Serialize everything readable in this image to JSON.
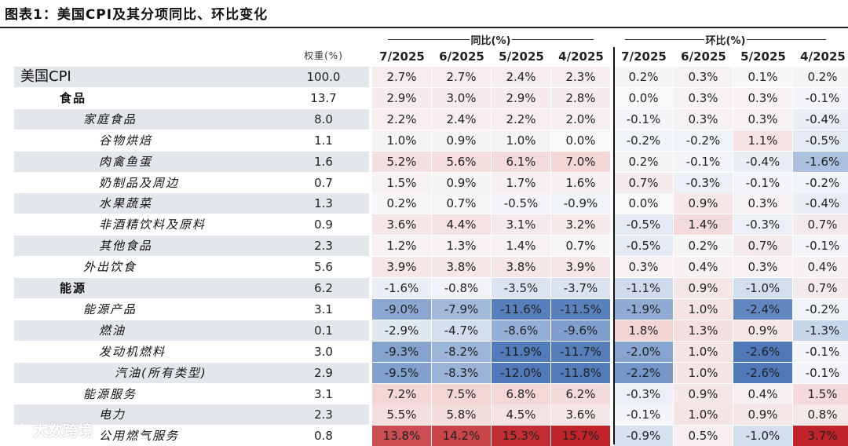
{
  "title": "图表1：美国CPI及其分项同比、环比变化",
  "groups": {
    "yoy": "同比(%)",
    "mom": "环比(%)"
  },
  "weight_header": "权重(%)",
  "months": [
    "7/2025",
    "6/2025",
    "5/2025",
    "4/2025"
  ],
  "watermark": "大数跨境",
  "colors": {
    "red_dark": "#c0242a",
    "red_mid": "#e06c6c",
    "red_light": "#f3d3d3",
    "neutral": "#f7f8fa",
    "blue_light": "#c8d6ea",
    "blue_mid": "#7a9acb",
    "blue_dark": "#4f79b9",
    "row_shade": "#e3e6eb"
  },
  "rows": [
    {
      "label": "美国CPI",
      "weight": "100.0",
      "level": 0,
      "yoy": [
        "2.7%",
        "2.7%",
        "2.4%",
        "2.3%"
      ],
      "mom": [
        "0.2%",
        "0.3%",
        "0.1%",
        "0.2%"
      ]
    },
    {
      "label": "食品",
      "weight": "13.7",
      "level": 1,
      "yoy": [
        "2.9%",
        "3.0%",
        "2.9%",
        "2.8%"
      ],
      "mom": [
        "0.0%",
        "0.3%",
        "0.3%",
        "-0.1%"
      ]
    },
    {
      "label": "家庭食品",
      "weight": "8.0",
      "level": 2,
      "yoy": [
        "2.2%",
        "2.4%",
        "2.2%",
        "2.0%"
      ],
      "mom": [
        "-0.1%",
        "0.3%",
        "0.3%",
        "-0.4%"
      ]
    },
    {
      "label": "谷物烘焙",
      "weight": "1.1",
      "level": 3,
      "yoy": [
        "1.0%",
        "0.9%",
        "1.0%",
        "0.0%"
      ],
      "mom": [
        "-0.2%",
        "-0.2%",
        "1.1%",
        "-0.5%"
      ]
    },
    {
      "label": "肉禽鱼蛋",
      "weight": "1.6",
      "level": 3,
      "yoy": [
        "5.2%",
        "5.6%",
        "6.1%",
        "7.0%"
      ],
      "mom": [
        "0.2%",
        "-0.1%",
        "-0.4%",
        "-1.6%"
      ]
    },
    {
      "label": "奶制品及周边",
      "weight": "0.7",
      "level": 3,
      "yoy": [
        "1.5%",
        "0.9%",
        "1.7%",
        "1.6%"
      ],
      "mom": [
        "0.7%",
        "-0.3%",
        "-0.1%",
        "-0.2%"
      ]
    },
    {
      "label": "水果蔬菜",
      "weight": "1.3",
      "level": 3,
      "yoy": [
        "0.2%",
        "0.7%",
        "-0.5%",
        "-0.9%"
      ],
      "mom": [
        "0.0%",
        "0.9%",
        "0.3%",
        "-0.4%"
      ]
    },
    {
      "label": "非酒精饮料及原料",
      "weight": "0.9",
      "level": 3,
      "yoy": [
        "3.6%",
        "4.4%",
        "3.1%",
        "3.2%"
      ],
      "mom": [
        "-0.5%",
        "1.4%",
        "-0.3%",
        "0.7%"
      ]
    },
    {
      "label": "其他食品",
      "weight": "2.3",
      "level": 3,
      "yoy": [
        "1.2%",
        "1.3%",
        "1.4%",
        "0.7%"
      ],
      "mom": [
        "-0.5%",
        "0.2%",
        "0.7%",
        "-0.1%"
      ]
    },
    {
      "label": "外出饮食",
      "weight": "5.6",
      "level": 2,
      "yoy": [
        "3.9%",
        "3.8%",
        "3.8%",
        "3.9%"
      ],
      "mom": [
        "0.3%",
        "0.4%",
        "0.3%",
        "0.4%"
      ]
    },
    {
      "label": "能源",
      "weight": "6.2",
      "level": 1,
      "yoy": [
        "-1.6%",
        "-0.8%",
        "-3.5%",
        "-3.7%"
      ],
      "mom": [
        "-1.1%",
        "0.9%",
        "-1.0%",
        "0.7%"
      ]
    },
    {
      "label": "能源产品",
      "weight": "3.1",
      "level": 2,
      "yoy": [
        "-9.0%",
        "-7.9%",
        "-11.6%",
        "-11.5%"
      ],
      "mom": [
        "-1.9%",
        "1.0%",
        "-2.4%",
        "-0.2%"
      ]
    },
    {
      "label": "燃油",
      "weight": "0.1",
      "level": 3,
      "yoy": [
        "-2.9%",
        "-4.7%",
        "-8.6%",
        "-9.6%"
      ],
      "mom": [
        "1.8%",
        "1.3%",
        "0.9%",
        "-1.3%"
      ]
    },
    {
      "label": "发动机燃料",
      "weight": "3.0",
      "level": 3,
      "yoy": [
        "-9.3%",
        "-8.2%",
        "-11.9%",
        "-11.7%"
      ],
      "mom": [
        "-2.0%",
        "1.0%",
        "-2.6%",
        "-0.1%"
      ]
    },
    {
      "label": "汽油(所有类型)",
      "weight": "2.9",
      "level": 4,
      "yoy": [
        "-9.5%",
        "-8.3%",
        "-12.0%",
        "-11.8%"
      ],
      "mom": [
        "-2.2%",
        "1.0%",
        "-2.6%",
        "-0.1%"
      ]
    },
    {
      "label": "能源服务",
      "weight": "3.1",
      "level": 2,
      "yoy": [
        "7.2%",
        "7.5%",
        "6.8%",
        "6.2%"
      ],
      "mom": [
        "-0.3%",
        "0.9%",
        "0.4%",
        "1.5%"
      ]
    },
    {
      "label": "电力",
      "weight": "2.3",
      "level": 3,
      "yoy": [
        "5.5%",
        "5.8%",
        "4.5%",
        "3.6%"
      ],
      "mom": [
        "-0.1%",
        "1.0%",
        "0.9%",
        "0.8%"
      ]
    },
    {
      "label": "公用燃气服务",
      "weight": "0.8",
      "level": 3,
      "yoy": [
        "13.8%",
        "14.2%",
        "15.3%",
        "15.7%"
      ],
      "mom": [
        "-0.9%",
        "0.5%",
        "-1.0%",
        "3.7%"
      ]
    }
  ]
}
